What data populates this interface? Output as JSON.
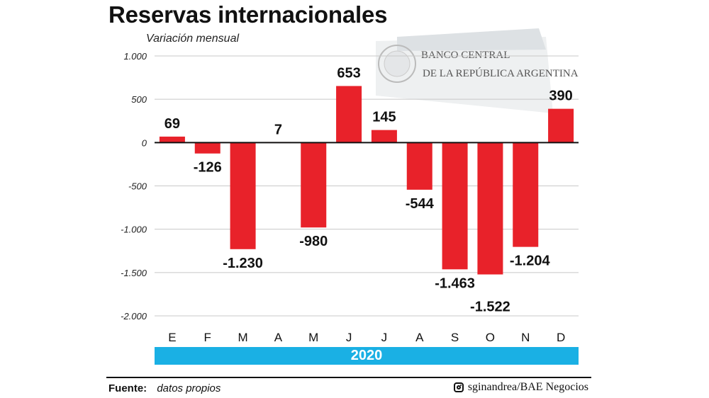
{
  "title": "Reservas internacionales",
  "subtitle": "Variación mensual",
  "year": "2020",
  "footer": {
    "source_label": "Fuente:",
    "source_value": "datos propios",
    "credit": "sginandrea/BAE Negocios",
    "credit_icon": "instagram-icon"
  },
  "background_sign": {
    "line1": "BANCO CENTRAL",
    "line2": "DE LA REPÚBLICA ARGENTINA"
  },
  "colors": {
    "bar": "#e8222a",
    "year_bar": "#1ab0e4"
  },
  "chart_data": {
    "type": "bar",
    "categories": [
      "E",
      "F",
      "M",
      "A",
      "M",
      "J",
      "J",
      "A",
      "S",
      "O",
      "N",
      "D"
    ],
    "values": [
      69,
      -126,
      -1230,
      7,
      -980,
      653,
      145,
      -544,
      -1463,
      -1522,
      -1204,
      390
    ],
    "value_labels": [
      "69",
      "-126",
      "-1.230",
      "7",
      "-980",
      "653",
      "145",
      "-544",
      "-1.463",
      "-1.522",
      "-1.204",
      "390"
    ],
    "y_ticks": [
      1000,
      500,
      0,
      -500,
      -1000,
      -1500,
      -2000
    ],
    "y_tick_labels": [
      "1.000",
      "500",
      "0",
      "-500",
      "-1.000",
      "-1.500",
      "-2.000"
    ],
    "ylim": [
      -2000,
      1000
    ],
    "grid": true,
    "title": "Reservas internacionales",
    "ylabel": "Variación mensual",
    "xlabel": "2020"
  }
}
